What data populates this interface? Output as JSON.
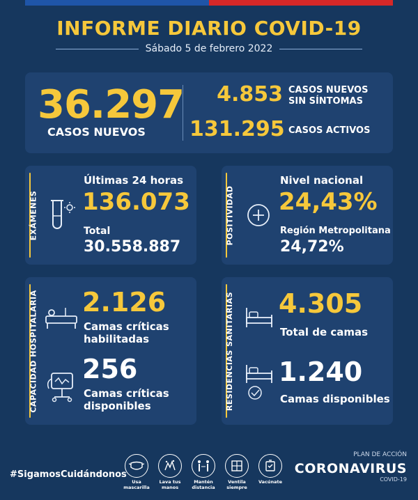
{
  "header": {
    "title": "INFORME DIARIO COVID-19",
    "date": "Sábado 5 de febrero 2022"
  },
  "summary": {
    "new_cases": "36.297",
    "new_cases_label": "CASOS NUEVOS",
    "asymptomatic": "4.853",
    "asymptomatic_label_1": "CASOS NUEVOS",
    "asymptomatic_label_2": "SIN SÍNTOMAS",
    "active": "131.295",
    "active_label": "CASOS ACTIVOS"
  },
  "exams": {
    "tab": "EXÁMENES",
    "last24_label": "Últimas 24 horas",
    "last24_value": "136.073",
    "total_label": "Total",
    "total_value": "30.558.887"
  },
  "positivity": {
    "tab": "POSITIVIDAD",
    "national_label": "Nivel nacional",
    "national_value": "24,43%",
    "rm_label": "Región Metropolitana",
    "rm_value": "24,72%"
  },
  "hospital": {
    "tab": "CAPACIDAD HOSPITALARIA",
    "enabled_value": "2.126",
    "enabled_label_1": "Camas críticas",
    "enabled_label_2": "habilitadas",
    "available_value": "256",
    "available_label_1": "Camas críticas",
    "available_label_2": "disponibles"
  },
  "residences": {
    "tab": "RESIDENCIAS SANITARIAS",
    "total_value": "4.305",
    "total_label": "Total de camas",
    "available_value": "1.240",
    "available_label": "Camas disponibles"
  },
  "footer": {
    "hashtag": "#SigamosCuidándonos",
    "tips": [
      {
        "l1": "Usa",
        "l2": "mascarilla",
        "icon": "mask-icon"
      },
      {
        "l1": "Lava tus",
        "l2": "manos",
        "icon": "hands-icon"
      },
      {
        "l1": "Mantén",
        "l2": "distancia",
        "icon": "distance-icon"
      },
      {
        "l1": "Ventila",
        "l2": "siempre",
        "icon": "window-icon"
      },
      {
        "l1": "Vacúnate",
        "l2": "",
        "icon": "vaccine-icon"
      }
    ],
    "plan": "PLAN DE ACCIÓN",
    "brand": "CORONAVIRUS",
    "brand_sub": "COVID-19"
  },
  "colors": {
    "background": "#16375e",
    "panel": "#1f4270",
    "accent": "#f6c83b",
    "flag_blue": "#1f55a8",
    "flag_red": "#d62828"
  }
}
